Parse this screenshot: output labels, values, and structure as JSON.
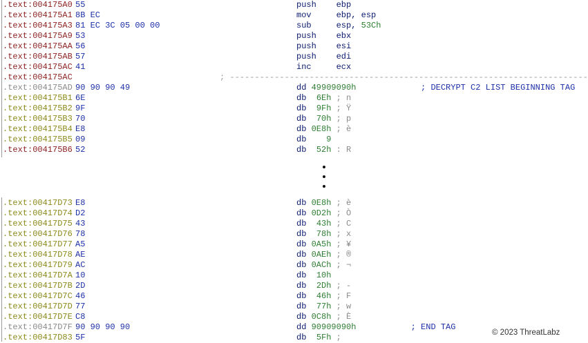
{
  "listing_top": [
    {
      "a": ".text:004175A0",
      "k": "code",
      "b": "55",
      "m": "push    ",
      "o": "ebp"
    },
    {
      "a": ".text:004175A1",
      "k": "code",
      "b": "8B EC",
      "m": "mov     ",
      "o": "ebp, esp"
    },
    {
      "a": ".text:004175A3",
      "k": "code",
      "b": "81 EC 3C 05 00 00",
      "m": "sub     ",
      "o": "esp, ",
      "n": "53Ch"
    },
    {
      "a": ".text:004175A9",
      "k": "code",
      "b": "53",
      "m": "push    ",
      "o": "ebx"
    },
    {
      "a": ".text:004175AA",
      "k": "code",
      "b": "56",
      "m": "push    ",
      "o": "esi"
    },
    {
      "a": ".text:004175AB",
      "k": "code",
      "b": "57",
      "m": "push    ",
      "o": "edi"
    },
    {
      "a": ".text:004175AC",
      "k": "code",
      "b": "41",
      "m": "inc     ",
      "o": "ecx"
    },
    {
      "a": ".text:004175AC",
      "k": "sep",
      "sep": "; ------------------------------------------------------------------------"
    },
    {
      "a": ".text:004175AD",
      "k": "tag",
      "b": "90 90 90 49",
      "m": "dd ",
      "n": "49909090h",
      "pad": "             ",
      "t": "; DECRYPT C2 LIST BEGINNING TAG"
    },
    {
      "a": ".text:004175B1",
      "k": "data",
      "b": "6E",
      "m": "db  ",
      "n": "6Eh",
      "c": " ; n"
    },
    {
      "a": ".text:004175B2",
      "k": "data",
      "b": "9F",
      "m": "db  ",
      "n": "9Fh",
      "c": " ; Ÿ"
    },
    {
      "a": ".text:004175B3",
      "k": "data",
      "b": "70",
      "m": "db  ",
      "n": "70h",
      "c": " ; p"
    },
    {
      "a": ".text:004175B4",
      "k": "data",
      "b": "E8",
      "m": "db ",
      "n": "0E8h",
      "c": " ; è"
    },
    {
      "a": ".text:004175B5",
      "k": "data",
      "b": "09",
      "m": "db    ",
      "n": "9"
    },
    {
      "a": ".text:004175B6",
      "k": "code",
      "b": "52",
      "m": "db  ",
      "n": "52h",
      "c": " : R"
    }
  ],
  "listing_bottom": [
    {
      "a": ".text:00417D73",
      "k": "data",
      "b": "E8",
      "m": "db ",
      "n": "0E8h",
      "c": " ; è"
    },
    {
      "a": ".text:00417D74",
      "k": "data",
      "b": "D2",
      "m": "db ",
      "n": "0D2h",
      "c": " ; Ò"
    },
    {
      "a": ".text:00417D75",
      "k": "data",
      "b": "43",
      "m": "db  ",
      "n": "43h",
      "c": " ; C"
    },
    {
      "a": ".text:00417D76",
      "k": "data",
      "b": "78",
      "m": "db  ",
      "n": "78h",
      "c": " ; x"
    },
    {
      "a": ".text:00417D77",
      "k": "data",
      "b": "A5",
      "m": "db ",
      "n": "0A5h",
      "c": " ; ¥"
    },
    {
      "a": ".text:00417D78",
      "k": "data",
      "b": "AE",
      "m": "db ",
      "n": "0AEh",
      "c": " ; ®"
    },
    {
      "a": ".text:00417D79",
      "k": "data",
      "b": "AC",
      "m": "db ",
      "n": "0ACh",
      "c": " ; ¬"
    },
    {
      "a": ".text:00417D7A",
      "k": "data",
      "b": "10",
      "m": "db  ",
      "n": "10h"
    },
    {
      "a": ".text:00417D7B",
      "k": "data",
      "b": "2D",
      "m": "db  ",
      "n": "2Dh",
      "c": " ; -"
    },
    {
      "a": ".text:00417D7C",
      "k": "data",
      "b": "46",
      "m": "db  ",
      "n": "46h",
      "c": " ; F"
    },
    {
      "a": ".text:00417D7D",
      "k": "data",
      "b": "77",
      "m": "db  ",
      "n": "77h",
      "c": " ; w"
    },
    {
      "a": ".text:00417D7E",
      "k": "data",
      "b": "C8",
      "m": "db ",
      "n": "0C8h",
      "c": " ; È"
    },
    {
      "a": ".text:00417D7F",
      "k": "tag",
      "b": "90 90 90 90",
      "m": "dd ",
      "n": "90909090h",
      "pad": "           ",
      "t": "; END TAG"
    },
    {
      "a": ".text:00417D83",
      "k": "data",
      "b": "5F",
      "m": "db  ",
      "n": "5Fh",
      "c": " ;"
    }
  ],
  "copyright": "© 2023 ThreatLabz"
}
